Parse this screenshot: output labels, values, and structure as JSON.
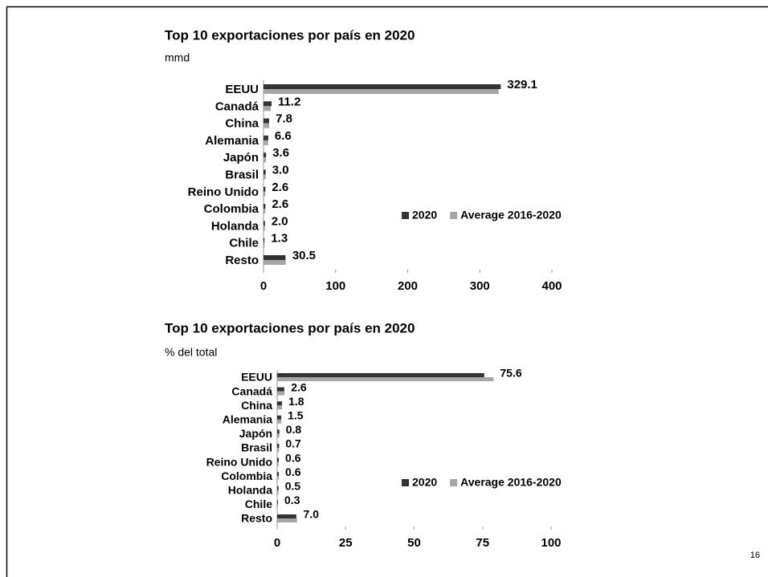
{
  "page_number": "16",
  "chart_data": [
    {
      "type": "bar",
      "orientation": "horizontal",
      "title": "Top 10 exportaciones por país en 2020",
      "subtitle": "mmd",
      "categories": [
        "EEUU",
        "Canadá",
        "China",
        "Alemania",
        "Japón",
        "Brasil",
        "Reino Unido",
        "Colombia",
        "Holanda",
        "Chile",
        "Resto"
      ],
      "series": [
        {
          "name": "2020",
          "color": "#333333",
          "values": [
            329.1,
            11.2,
            7.8,
            6.6,
            3.6,
            3.0,
            2.6,
            2.6,
            2.0,
            1.3,
            30.5
          ],
          "value_labels": [
            "329.1",
            "11.2",
            "7.8",
            "6.6",
            "3.6",
            "3.0",
            "2.6",
            "2.6",
            "2.0",
            "1.3",
            "30.5"
          ]
        },
        {
          "name": "Average 2016-2020",
          "color": "#a6a6a6",
          "values": [
            326,
            10,
            8,
            6.5,
            3.5,
            3,
            2.5,
            2.5,
            2,
            1.5,
            31
          ]
        }
      ],
      "xlim": [
        0,
        400
      ],
      "xticks": [
        0,
        100,
        200,
        300,
        400
      ],
      "legend": "right"
    },
    {
      "type": "bar",
      "orientation": "horizontal",
      "title": "Top 10 exportaciones por país en 2020",
      "subtitle": "% del total",
      "categories": [
        "EEUU",
        "Canadá",
        "China",
        "Alemania",
        "Japón",
        "Brasil",
        "Reino Unido",
        "Colombia",
        "Holanda",
        "Chile",
        "Resto"
      ],
      "series": [
        {
          "name": "2020",
          "color": "#333333",
          "values": [
            75.6,
            2.6,
            1.8,
            1.5,
            0.8,
            0.7,
            0.6,
            0.6,
            0.5,
            0.3,
            7.0
          ],
          "value_labels": [
            "75.6",
            "2.6",
            "1.8",
            "1.5",
            "0.8",
            "0.7",
            "0.6",
            "0.6",
            "0.5",
            "0.3",
            "7.0"
          ]
        },
        {
          "name": "Average 2016-2020",
          "color": "#a6a6a6",
          "values": [
            79,
            2.7,
            1.8,
            1.5,
            0.8,
            0.7,
            0.6,
            0.6,
            0.5,
            0.3,
            7.2
          ]
        }
      ],
      "xlim": [
        0,
        100
      ],
      "xticks": [
        0,
        25,
        50,
        75,
        100
      ],
      "legend": "right"
    }
  ]
}
